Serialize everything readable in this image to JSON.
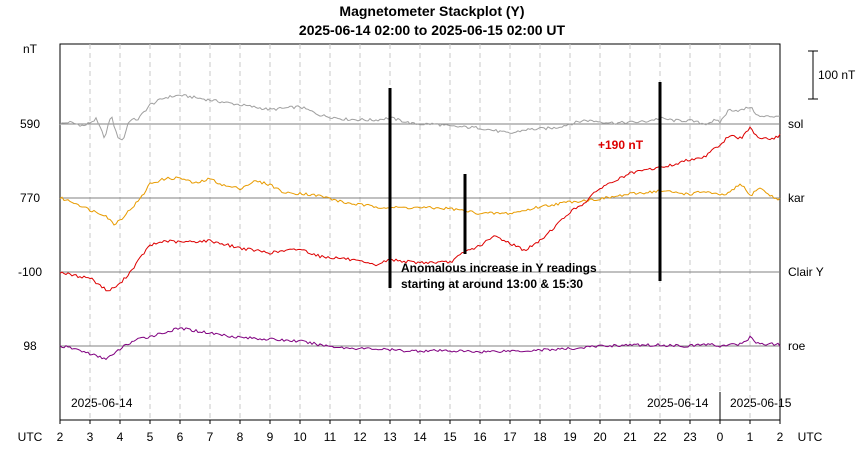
{
  "chart_data": {
    "type": "line",
    "title": "Magnetometer Stackplot (Y)",
    "subtitle": "2025-06-14 02:00 to 2025-06-15 02:00 UT",
    "unit_label": "nT",
    "scale_bar_label": "100 nT",
    "x_axis_label": "UTC",
    "x_ticks": [
      "2",
      "3",
      "4",
      "5",
      "6",
      "7",
      "8",
      "9",
      "10",
      "11",
      "12",
      "13",
      "14",
      "15",
      "16",
      "17",
      "18",
      "19",
      "20",
      "21",
      "22",
      "23",
      "0",
      "1",
      "2"
    ],
    "date_labels": [
      "2025-06-14",
      "2025-06-14",
      "2025-06-15"
    ],
    "x_range_hours": [
      0,
      24
    ],
    "series": [
      {
        "name": "sol",
        "baseline": "590",
        "color": "#a0a0a0",
        "hours": [
          0,
          0.3,
          0.8,
          1.2,
          1.5,
          1.7,
          1.9,
          2.1,
          2.3,
          2.6,
          3.0,
          3.5,
          4.0,
          5.0,
          6.0,
          7.0,
          8.0,
          8.7,
          9.5,
          10.5,
          11.0,
          11.8,
          12.5,
          13.0,
          14.0,
          15.0,
          15.5,
          16.5,
          17.5,
          18.5,
          19.5,
          20.0,
          20.5,
          21.0,
          21.5,
          21.8,
          22.0,
          22.3,
          22.7,
          23.0,
          23.3,
          23.8,
          24.0
        ],
        "values": [
          590,
          594,
          586,
          600,
          560,
          610,
          565,
          555,
          598,
          600,
          630,
          645,
          650,
          640,
          630,
          620,
          626,
          608,
          600,
          598,
          603,
          590,
          590,
          585,
          582,
          570,
          578,
          582,
          598,
          592,
          595,
          602,
          597,
          597,
          590,
          597,
          594,
          620,
          618,
          626,
          605,
          606,
          608
        ]
      },
      {
        "name": "kar",
        "baseline": "770",
        "color": "#e89b00",
        "hours": [
          0,
          0.5,
          1.0,
          1.5,
          1.8,
          2.1,
          2.4,
          2.7,
          3.0,
          3.5,
          4.0,
          4.5,
          5.0,
          5.5,
          6.0,
          6.5,
          7.0,
          7.5,
          8.0,
          8.7,
          9.5,
          10.5,
          11.0,
          12.0,
          13.0,
          14.0,
          15.0,
          15.5,
          16.0,
          17.0,
          18.0,
          19.0,
          20.0,
          21.0,
          21.5,
          22.0,
          22.3,
          22.7,
          23.0,
          23.3,
          23.8,
          24.0
        ],
        "values": [
          770,
          760,
          745,
          735,
          715,
          730,
          750,
          770,
          800,
          810,
          812,
          800,
          810,
          795,
          790,
          805,
          798,
          780,
          780,
          774,
          760,
          752,
          750,
          750,
          748,
          738,
          738,
          744,
          752,
          762,
          768,
          778,
          785,
          778,
          784,
          775,
          780,
          800,
          774,
          792,
          770,
          768
        ]
      },
      {
        "name": "Clair Y",
        "baseline": "-100",
        "color": "#dd0000",
        "hours": [
          0,
          0.5,
          1.0,
          1.3,
          1.6,
          2.0,
          2.4,
          2.8,
          3.0,
          3.5,
          4.0,
          5.0,
          6.0,
          7.0,
          8.0,
          8.7,
          9.5,
          10.5,
          11.0,
          11.8,
          12.5,
          13.0,
          13.5,
          14.0,
          14.5,
          15.0,
          15.5,
          16.0,
          16.5,
          17.0,
          17.5,
          18.0,
          18.5,
          19.0,
          19.5,
          20.0,
          20.5,
          21.0,
          21.5,
          21.8,
          22.0,
          22.3,
          22.7,
          23.0,
          23.3,
          23.8,
          24.0
        ],
        "values": [
          -100,
          -108,
          -112,
          -126,
          -140,
          -125,
          -95,
          -60,
          -45,
          -35,
          -38,
          -35,
          -50,
          -60,
          -52,
          -68,
          -72,
          -86,
          -74,
          -80,
          -80,
          -80,
          -58,
          -45,
          -25,
          -40,
          -55,
          -35,
          -5,
          25,
          45,
          75,
          90,
          105,
          112,
          118,
          124,
          135,
          140,
          160,
          162,
          185,
          178,
          200,
          180,
          178,
          185
        ]
      },
      {
        "name": "roe",
        "baseline": "98",
        "color": "#800080",
        "hours": [
          0,
          0.5,
          1.0,
          1.3,
          1.5,
          1.8,
          2.0,
          2.2,
          2.5,
          3.0,
          4.0,
          5.0,
          6.0,
          7.0,
          8.0,
          8.7,
          9.5,
          10.5,
          11.5,
          12.5,
          13.0,
          14.0,
          15.0,
          15.5,
          16.0,
          17.0,
          18.0,
          19.0,
          20.0,
          21.0,
          21.5,
          22.0,
          22.3,
          22.7,
          23.0,
          23.3,
          23.8,
          24.0
        ],
        "values": [
          98,
          92,
          82,
          75,
          72,
          80,
          92,
          100,
          110,
          118,
          135,
          125,
          116,
          112,
          108,
          100,
          94,
          92,
          88,
          88,
          88,
          86,
          88,
          88,
          90,
          92,
          98,
          100,
          100,
          98,
          102,
          98,
          100,
          102,
          116,
          102,
          102,
          100
        ]
      }
    ],
    "annotations": [
      {
        "text": "+190 nT",
        "color": "#dd0000"
      },
      {
        "text": "Anomalous increase in Y readings"
      },
      {
        "text": "starting at around 13:00 & 15:30"
      }
    ],
    "event_markers_hours": [
      11,
      13.5,
      20
    ]
  }
}
